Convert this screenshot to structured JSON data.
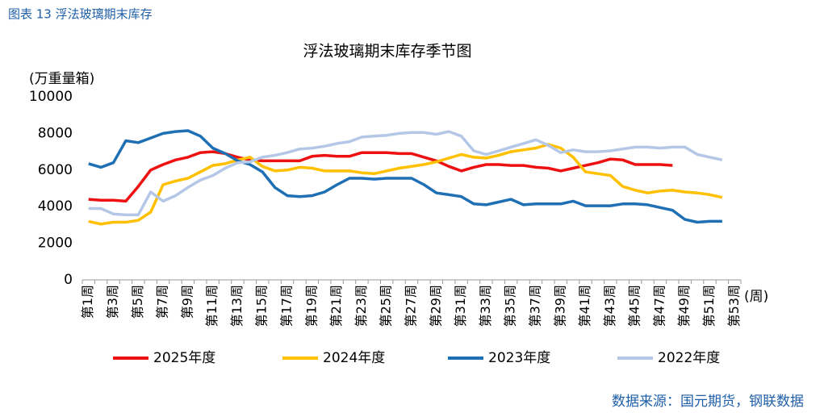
{
  "header": "图表 13 浮法玻璃期末库存",
  "source": "数据来源：国元期货，钢联数据",
  "chart_data": {
    "type": "line",
    "title": "浮法玻璃期末库存季节图",
    "y_label": "(万重量箱)",
    "x_label": "(周)",
    "categories": [
      "第1周",
      null,
      "第3周",
      null,
      "第5周",
      null,
      "第7周",
      null,
      "第9周",
      null,
      "第11周",
      null,
      "第13周",
      null,
      "第15周",
      null,
      "第17周",
      null,
      "第19周",
      null,
      "第21周",
      null,
      "第23周",
      null,
      "第25周",
      null,
      "第27周",
      null,
      "第29周",
      null,
      "第31周",
      null,
      "第33周",
      null,
      "第35周",
      null,
      "第37周",
      null,
      "第39周",
      null,
      "第41周",
      null,
      "第43周",
      null,
      "第45周",
      null,
      "第47周",
      null,
      "第49周",
      null,
      "第51周",
      null,
      "第53周"
    ],
    "ylim": [
      0,
      10000
    ],
    "yticks": [
      0,
      2000,
      4000,
      6000,
      8000,
      10000
    ],
    "legend": "bottom",
    "series": [
      {
        "name": "2025年度",
        "color": "#ee1111",
        "values": [
          4400,
          4350,
          4350,
          4300,
          5100,
          6000,
          6300,
          6550,
          6700,
          6950,
          7000,
          6900,
          6700,
          6550,
          6500,
          6500,
          6500,
          6500,
          6750,
          6800,
          6750,
          6750,
          6950,
          6950,
          6950,
          6900,
          6900,
          6700,
          6500,
          6200,
          5950,
          6150,
          6300,
          6300,
          6250,
          6250,
          6150,
          6100,
          5950,
          6100,
          6250,
          6400,
          6600,
          6550,
          6300,
          6300,
          6300,
          6250,
          null,
          null,
          null,
          null,
          null
        ]
      },
      {
        "name": "2024年度",
        "color": "#ffc000",
        "values": [
          3200,
          3050,
          3150,
          3150,
          3250,
          3700,
          5200,
          5400,
          5550,
          5900,
          6250,
          6350,
          6550,
          6700,
          6200,
          5950,
          6000,
          6150,
          6100,
          5950,
          5950,
          5950,
          5850,
          5800,
          5950,
          6100,
          6200,
          6300,
          6450,
          6650,
          6850,
          6700,
          6650,
          6800,
          7000,
          7100,
          7200,
          7400,
          7200,
          6700,
          5900,
          5800,
          5700,
          5100,
          4900,
          4750,
          4850,
          4900,
          4800,
          4750,
          4650,
          4500,
          null
        ]
      },
      {
        "name": "2023年度",
        "color": "#1f6fb5",
        "values": [
          6350,
          6150,
          6400,
          7600,
          7500,
          7750,
          8000,
          8100,
          8150,
          7850,
          7200,
          6900,
          6500,
          6300,
          5900,
          5050,
          4600,
          4550,
          4600,
          4800,
          5200,
          5550,
          5550,
          5500,
          5550,
          5550,
          5550,
          5200,
          4750,
          4650,
          4550,
          4150,
          4100,
          4250,
          4400,
          4100,
          4150,
          4150,
          4150,
          4300,
          4050,
          4050,
          4050,
          4150,
          4150,
          4100,
          3950,
          3800,
          3300,
          3150,
          3200,
          3200,
          null
        ]
      },
      {
        "name": "2022年度",
        "color": "#b4c7e7",
        "values": [
          3900,
          3900,
          3600,
          3550,
          3550,
          4800,
          4300,
          4600,
          5050,
          5450,
          5700,
          6100,
          6400,
          6450,
          6700,
          6800,
          6950,
          7150,
          7200,
          7300,
          7450,
          7550,
          7800,
          7850,
          7900,
          8000,
          8050,
          8050,
          7950,
          8100,
          7850,
          7050,
          6850,
          7050,
          7250,
          7450,
          7650,
          7350,
          6950,
          7100,
          7000,
          7000,
          7050,
          7150,
          7250,
          7250,
          7200,
          7250,
          7250,
          6850,
          6700,
          6550,
          null
        ]
      }
    ]
  }
}
